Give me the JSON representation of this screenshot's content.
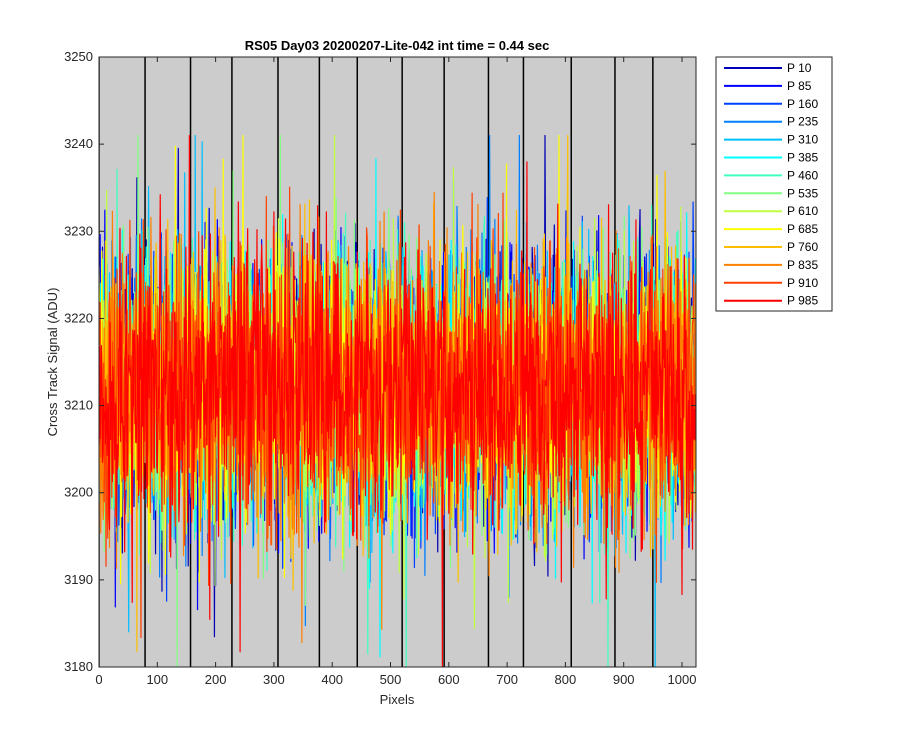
{
  "chart_data": {
    "type": "line",
    "title": "RS05 Day03 20200207-Lite-042 int time = 0.44 sec",
    "xlabel": "Pixels",
    "ylabel": "Cross Track Signal (ADU)",
    "xlim": [
      0,
      1024
    ],
    "ylim": [
      3180,
      3250
    ],
    "xticks": [
      0,
      100,
      200,
      300,
      400,
      500,
      600,
      700,
      800,
      900,
      1000
    ],
    "yticks": [
      3180,
      3190,
      3200,
      3210,
      3220,
      3230,
      3240,
      3250
    ],
    "background_color": "#cccccc",
    "separator_lines_x": [
      0,
      79,
      157,
      228,
      307,
      378,
      443,
      520,
      592,
      668,
      728,
      810,
      885,
      950
    ],
    "signal": {
      "mean": 3212,
      "typical_range": [
        3196,
        3228
      ],
      "extreme_range": [
        3180,
        3241
      ]
    },
    "legend_location": "outside-right",
    "series": [
      {
        "name": "P 10",
        "color": "#0000b4"
      },
      {
        "name": "P 85",
        "color": "#0000ff"
      },
      {
        "name": "P 160",
        "color": "#0040ff"
      },
      {
        "name": "P 235",
        "color": "#0080ff"
      },
      {
        "name": "P 310",
        "color": "#00bfff"
      },
      {
        "name": "P 385",
        "color": "#00ffff"
      },
      {
        "name": "P 460",
        "color": "#40ffbf"
      },
      {
        "name": "P 535",
        "color": "#80ff80"
      },
      {
        "name": "P 610",
        "color": "#bfff40"
      },
      {
        "name": "P 685",
        "color": "#ffff00"
      },
      {
        "name": "P 760",
        "color": "#ffbf00"
      },
      {
        "name": "P 835",
        "color": "#ff8000"
      },
      {
        "name": "P 910",
        "color": "#ff4000"
      },
      {
        "name": "P 985",
        "color": "#ff0000"
      }
    ]
  }
}
